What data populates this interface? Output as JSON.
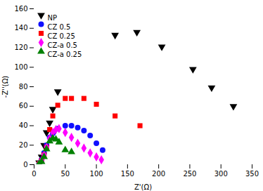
{
  "chart_data": {
    "type": "scatter",
    "xlabel": "Z'(Ω)",
    "ylabel": "-Z''(Ω)",
    "xlim": [
      0,
      350
    ],
    "ylim": [
      0,
      160
    ],
    "xticks": [
      0,
      50,
      100,
      150,
      200,
      250,
      300,
      350
    ],
    "yticks": [
      0,
      20,
      40,
      60,
      80,
      100,
      120,
      140,
      160
    ],
    "legend": "upper left",
    "series": [
      {
        "name": "NP",
        "color": "black",
        "marker": "triangle_down",
        "x": [
          8,
          12,
          16,
          20,
          25,
          30,
          38,
          130,
          165,
          205,
          255,
          285,
          320
        ],
        "values": [
          2,
          8,
          20,
          33,
          43,
          57,
          75,
          133,
          136,
          121,
          98,
          79,
          60
        ]
      },
      {
        "name": "CZ 0.5",
        "color": "#1010ff",
        "marker": "circle",
        "x": [
          8,
          12,
          16,
          20,
          25,
          30,
          38,
          50,
          60,
          70,
          80,
          90,
          100,
          110
        ],
        "values": [
          1,
          5,
          12,
          20,
          28,
          32,
          37,
          40,
          40,
          38,
          35,
          30,
          22,
          15
        ]
      },
      {
        "name": "CZ 0.25",
        "color": "#ff0000",
        "marker": "square",
        "x": [
          8,
          12,
          16,
          20,
          25,
          30,
          38,
          50,
          60,
          80,
          100,
          130,
          170
        ],
        "values": [
          1,
          4,
          10,
          18,
          36,
          50,
          61,
          68,
          68,
          68,
          62,
          50,
          40
        ]
      },
      {
        "name": "CZ-a 0.5",
        "color": "#ff00ff",
        "marker": "diamond",
        "x": [
          8,
          12,
          16,
          20,
          25,
          30,
          35,
          40,
          50,
          60,
          70,
          80,
          90,
          100,
          108
        ],
        "values": [
          1,
          4,
          10,
          18,
          27,
          33,
          36,
          37,
          33,
          28,
          22,
          17,
          12,
          8,
          5
        ]
      },
      {
        "name": "CZ-a 0.25",
        "color": "#008000",
        "marker": "triangle_up",
        "x": [
          8,
          12,
          16,
          20,
          25,
          30,
          35,
          40,
          50,
          60
        ],
        "values": [
          1,
          3,
          8,
          16,
          24,
          27,
          26,
          23,
          15,
          13
        ]
      }
    ]
  }
}
